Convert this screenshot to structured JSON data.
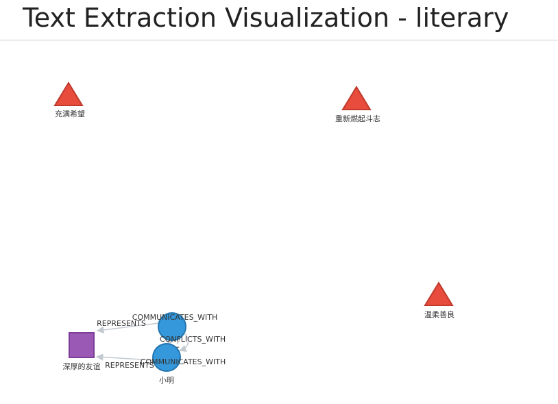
{
  "page": {
    "title": "Text Extraction Visualization - literary"
  },
  "colors": {
    "theme_node_fill": "#e74c3c",
    "theme_node_stroke": "#c0392b",
    "person_node_fill": "#3498db",
    "person_node_stroke": "#2476b0",
    "concept_node_fill": "#9b59b6",
    "concept_node_stroke": "#7d3c98",
    "edge_color": "#c3c9d0"
  },
  "graph": {
    "nodes": [
      {
        "id": "n1",
        "label": "充满希望",
        "shape": "triangle"
      },
      {
        "id": "n2",
        "label": "重新燃起斗志",
        "shape": "triangle"
      },
      {
        "id": "n3",
        "label": "温柔善良",
        "shape": "triangle"
      },
      {
        "id": "n4",
        "label": "小红",
        "shape": "circle"
      },
      {
        "id": "n5",
        "label": "小明",
        "shape": "circle"
      },
      {
        "id": "n6",
        "label": "深厚的友谊",
        "shape": "square"
      }
    ],
    "edges": [
      {
        "id": "e1",
        "source": "小红",
        "target": "深厚的友谊",
        "label": "REPRESENTS"
      },
      {
        "id": "e2",
        "source": "小明",
        "target": "深厚的友谊",
        "label": "REPRESENTS"
      },
      {
        "id": "e3",
        "source": "小明",
        "target": "小红",
        "label": "COMMUNICATES_WITH"
      },
      {
        "id": "e4",
        "source": "小红",
        "target": "小明",
        "label": "CONFLICTS_WITH"
      },
      {
        "id": "e5",
        "source": "小红",
        "target": "小明",
        "label": "COMMUNICATES_WITH"
      }
    ]
  }
}
